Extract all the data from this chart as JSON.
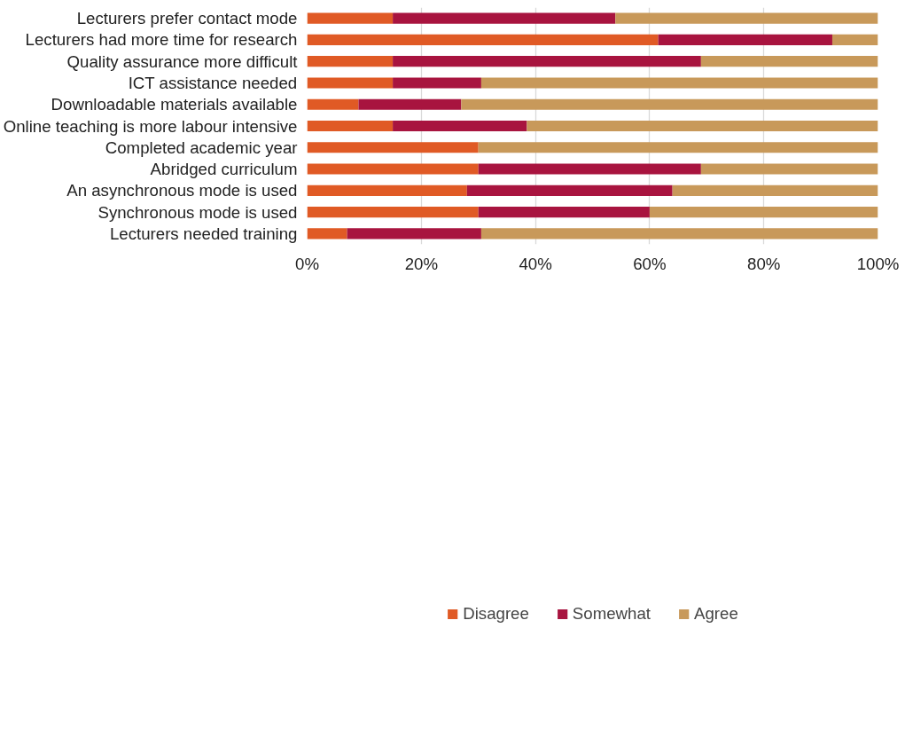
{
  "chart_data": {
    "type": "bar",
    "orientation": "horizontal",
    "stacked": true,
    "categories": [
      "Lecturers prefer contact mode",
      "Lecturers had more time for research",
      "Quality assurance more difficult",
      "ICT assistance needed",
      "Downloadable materials available",
      "Online teaching is more labour intensive",
      "Completed academic year",
      "Abridged curriculum",
      "An asynchronous mode is used",
      "Synchronous mode is used",
      "Lecturers needed training"
    ],
    "series": [
      {
        "name": "Disagree",
        "color": "#e05a25",
        "values": [
          15,
          61.5,
          15,
          15,
          9,
          15,
          30,
          30,
          28,
          30,
          7
        ]
      },
      {
        "name": "Somewhat",
        "color": "#a8143f",
        "values": [
          39,
          30.5,
          54,
          15.5,
          18,
          23.5,
          0,
          39,
          36,
          30,
          23.5
        ]
      },
      {
        "name": "Agree",
        "color": "#c8995a",
        "values": [
          46,
          8,
          31,
          69.5,
          73,
          61.5,
          70,
          31,
          36,
          40,
          69.5
        ]
      }
    ],
    "xlim": [
      0,
      100
    ],
    "xticks": [
      {
        "value": 0,
        "label": "0%"
      },
      {
        "value": 20,
        "label": "20%"
      },
      {
        "value": 40,
        "label": "40%"
      },
      {
        "value": 60,
        "label": "60%"
      },
      {
        "value": 80,
        "label": "80%"
      },
      {
        "value": 100,
        "label": "100%"
      }
    ],
    "grid": "x",
    "legend": "bottom"
  }
}
